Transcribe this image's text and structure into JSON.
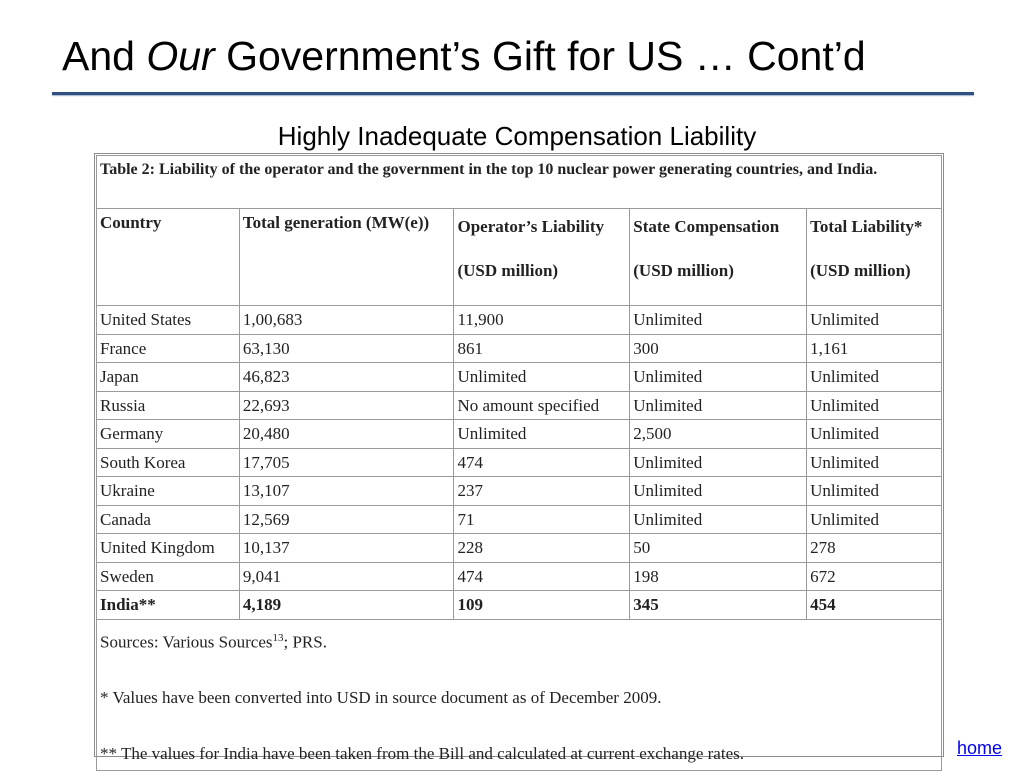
{
  "slide": {
    "title_pre": "And ",
    "title_em": "Our",
    "title_post": " Government’s Gift for US … Cont’d",
    "subtitle": "Highly Inadequate Compensation Liability"
  },
  "table": {
    "caption": "Table 2: Liability of the operator and the government in the top 10 nuclear power generating countries, and India.",
    "headers": {
      "country": "Country",
      "generation": "Total generation (MW(e))",
      "operator": "Operator’s Liability",
      "state": "State Compensation",
      "total": "Total Liability*",
      "unit": "(USD million)"
    },
    "rows": [
      [
        "United States",
        "1,00,683",
        "11,900",
        "Unlimited",
        "Unlimited"
      ],
      [
        "France",
        "63,130",
        "861",
        "300",
        "1,161"
      ],
      [
        "Japan",
        "46,823",
        "Unlimited",
        "Unlimited",
        "Unlimited"
      ],
      [
        "Russia",
        "22,693",
        "No amount specified",
        "Unlimited",
        "Unlimited"
      ],
      [
        "Germany",
        "20,480",
        "Unlimited",
        "2,500",
        "Unlimited"
      ],
      [
        "South Korea",
        "17,705",
        "474",
        "Unlimited",
        "Unlimited"
      ],
      [
        "Ukraine",
        "13,107",
        "237",
        "Unlimited",
        "Unlimited"
      ],
      [
        "Canada",
        "12,569",
        "71",
        "Unlimited",
        "Unlimited"
      ],
      [
        "United Kingdom",
        "10,137",
        "228",
        "50",
        "278"
      ],
      [
        "Sweden",
        "9,041",
        "474",
        "198",
        "672"
      ],
      [
        "India**",
        "4,189",
        "109",
        "345",
        "454"
      ]
    ],
    "notes": {
      "sources_text": "Sources: Various Sources",
      "sources_sup": "13",
      "sources_tail": "; PRS.",
      "note1": "* Values have been converted into USD in source document as of December 2009.",
      "note2": "** The values for India have been taken from the Bill and calculated at current exchange rates."
    }
  },
  "nav": {
    "home_label": "home"
  }
}
